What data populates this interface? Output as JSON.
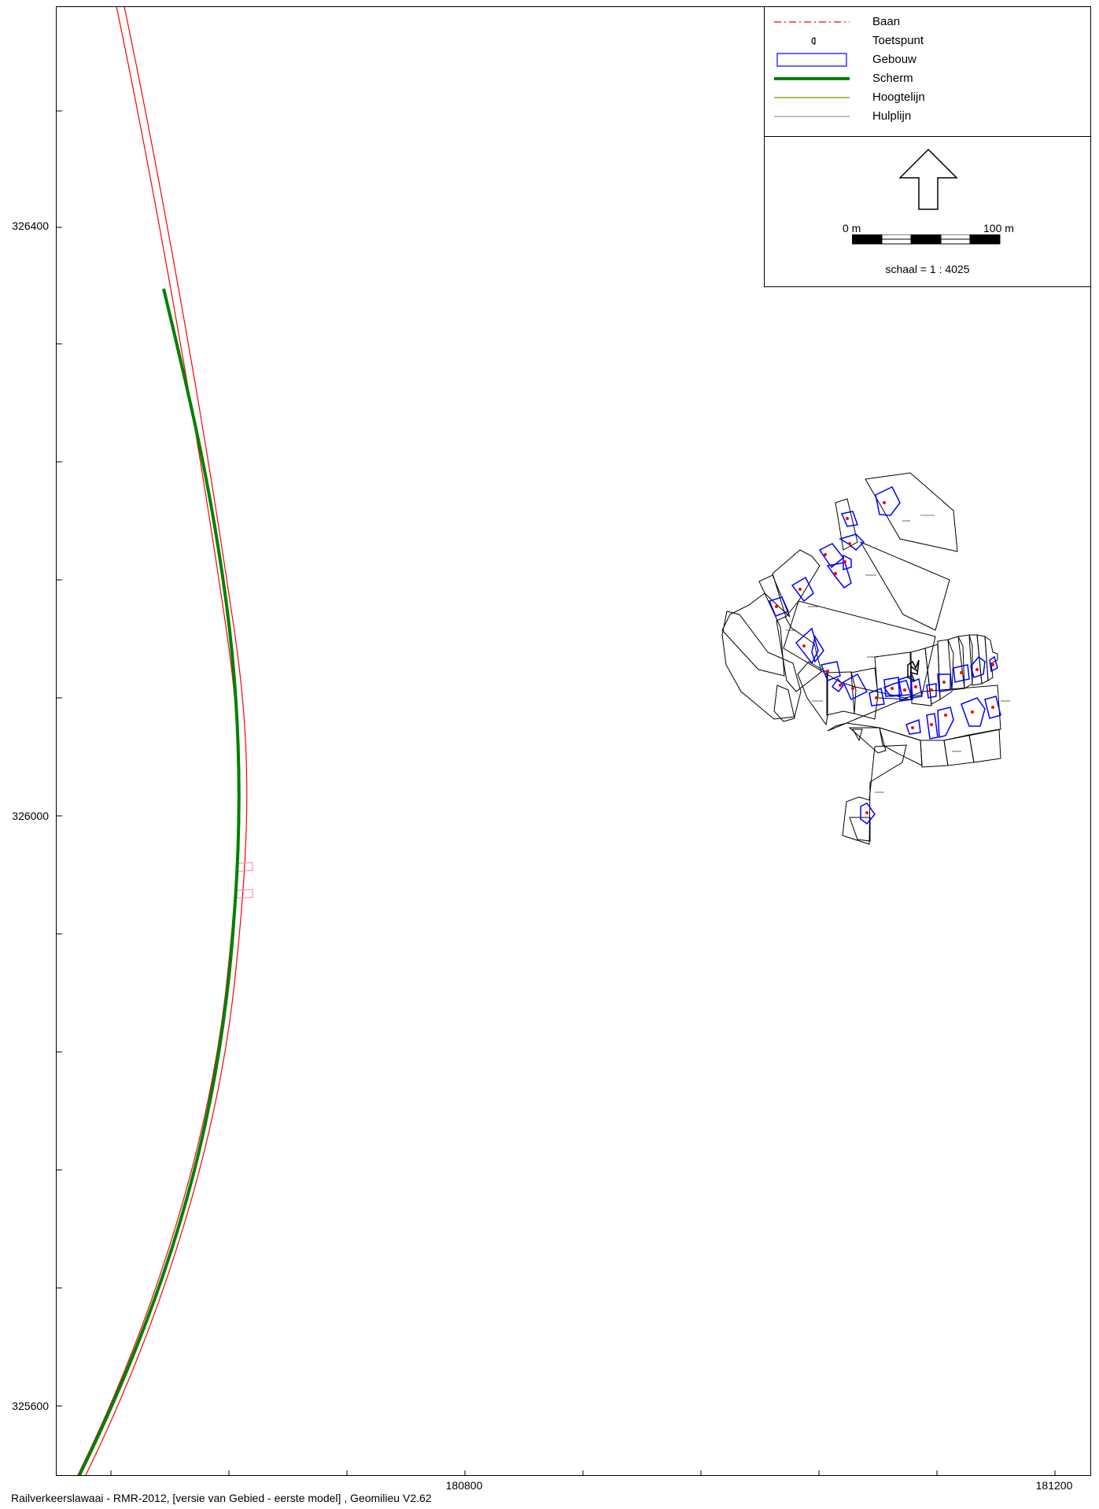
{
  "map": {
    "y_ticks": [
      "326400",
      "326000",
      "325600"
    ],
    "x_ticks": [
      "180800",
      "181200"
    ]
  },
  "legend": {
    "items": [
      {
        "label": "Baan",
        "icon": "dash-dot-red-line",
        "color": "#ff0000"
      },
      {
        "label": "Toetspunt",
        "icon": "receiver-point-symbol",
        "color": "#000000"
      },
      {
        "label": "Gebouw",
        "icon": "blue-rectangle",
        "color": "#0000ff"
      },
      {
        "label": "Scherm",
        "icon": "thick-green-line",
        "color": "#008000"
      },
      {
        "label": "Hoogtelijn",
        "icon": "olive-line",
        "color": "#8b8b00"
      },
      {
        "label": "Hulplijn",
        "icon": "grey-line",
        "color": "#808080"
      }
    ]
  },
  "north": {
    "icon": "north-arrow-icon",
    "scale_min": "0 m",
    "scale_max": "100 m",
    "scale_text": "schaal = 1 : 4025"
  },
  "footer": "Railverkeerslawaai - RMR-2012, [versie van Gebied - eerste model] , Geomilieu V2.62",
  "colors": {
    "rail": "#ff0000",
    "screen": "#008000",
    "building": "#0000ff",
    "parcel": "#000000",
    "point": "#ff0000"
  }
}
